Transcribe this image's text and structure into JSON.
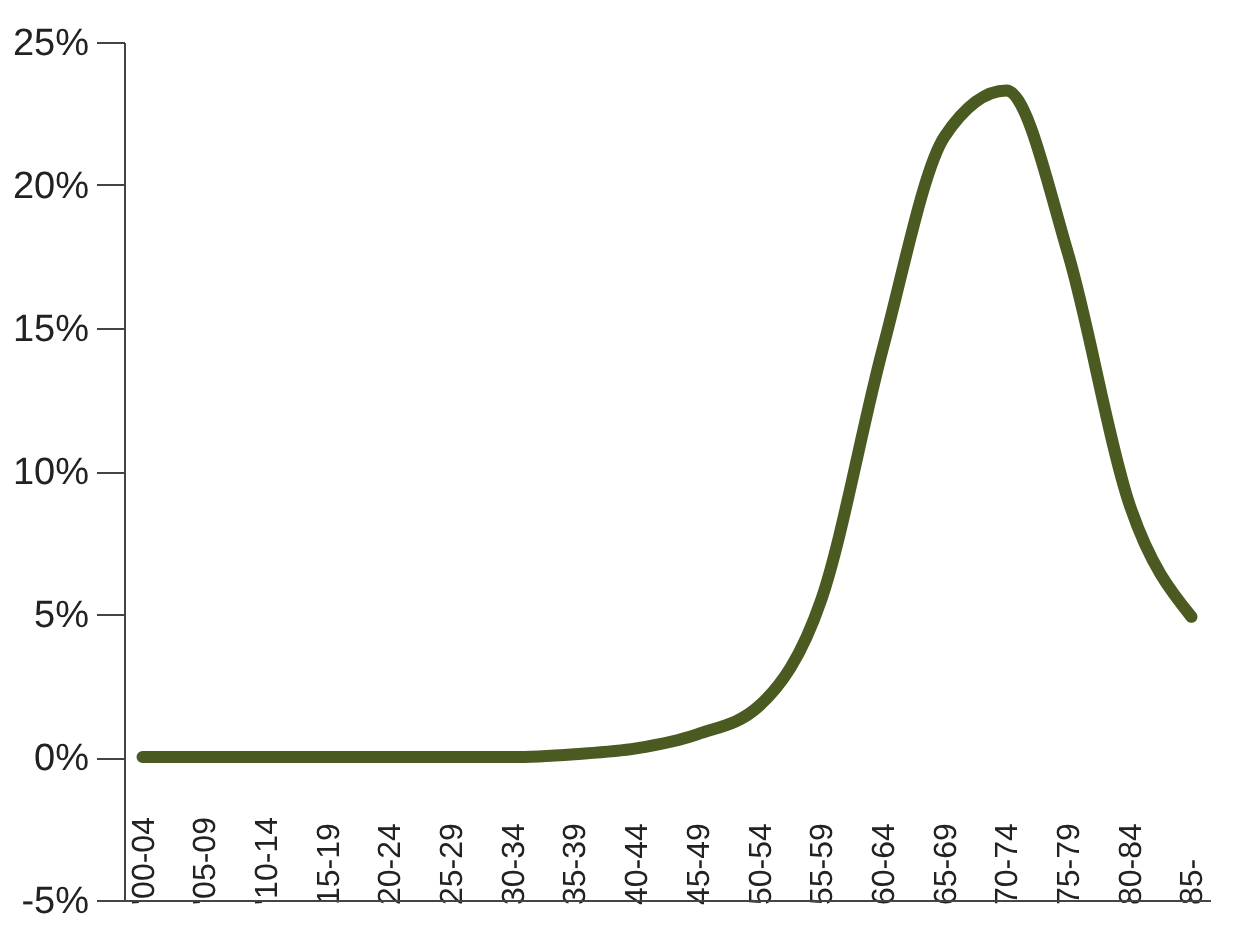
{
  "chart_data": {
    "type": "line",
    "categories": [
      "'00-04",
      "'05-09",
      "'10-14",
      "15-19",
      "20-24",
      "25-29",
      "30-34",
      "35-39",
      "40-44",
      "45-49",
      "50-54",
      "55-59",
      "60-64",
      "65-69",
      "70-74",
      "75-79",
      "80-84",
      "85-"
    ],
    "series": [
      {
        "color": "#4a5a20",
        "values": [
          0,
          0,
          0,
          0,
          0,
          0,
          0,
          0.1,
          0.3,
          0.8,
          1.8,
          5.5,
          14.3,
          21.7,
          23.3,
          17.6,
          8.8,
          4.9
        ]
      }
    ],
    "ylim": [
      -5,
      25
    ],
    "yticks": [
      {
        "value": -5,
        "label": "-5%"
      },
      {
        "value": 0,
        "label": "0%"
      },
      {
        "value": 5,
        "label": "5%"
      },
      {
        "value": 10,
        "label": "10%"
      },
      {
        "value": 15,
        "label": "15%"
      },
      {
        "value": 20,
        "label": "20%"
      },
      {
        "value": 25,
        "label": "25%"
      }
    ],
    "grid": false,
    "marker": "none",
    "line_style": "solid"
  }
}
